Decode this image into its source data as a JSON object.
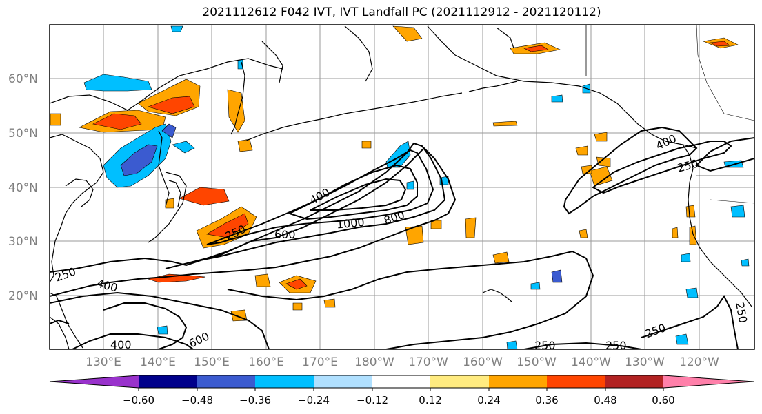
{
  "title": "2021112612 F042 IVT, IVT Landfall PC (2021112912 - 2021120112)",
  "map": {
    "lat_labels": [
      "60°N",
      "50°N",
      "40°N",
      "30°N",
      "20°N"
    ],
    "lon_labels": [
      "130°E",
      "140°E",
      "150°E",
      "160°E",
      "170°E",
      "180°W",
      "170°W",
      "160°W",
      "150°W",
      "140°W",
      "130°W",
      "120°W"
    ],
    "contour_labels": [
      "400",
      "1000",
      "800",
      "600",
      "250",
      "400",
      "400",
      "600",
      "250",
      "250",
      "400",
      "250",
      "250",
      "250",
      "250"
    ]
  },
  "colorbar": {
    "colors": [
      "#9932cc",
      "#00008b",
      "#3b5bd0",
      "#00bfff",
      "#b0e0ff",
      "#ffffff",
      "#ffeb80",
      "#ffa500",
      "#ff4500",
      "#b22222",
      "#ff80aa"
    ],
    "tick_labels": [
      "−0.60",
      "−0.48",
      "−0.36",
      "−0.24",
      "−0.12",
      "0.12",
      "0.24",
      "0.36",
      "0.48",
      "0.60"
    ]
  }
}
